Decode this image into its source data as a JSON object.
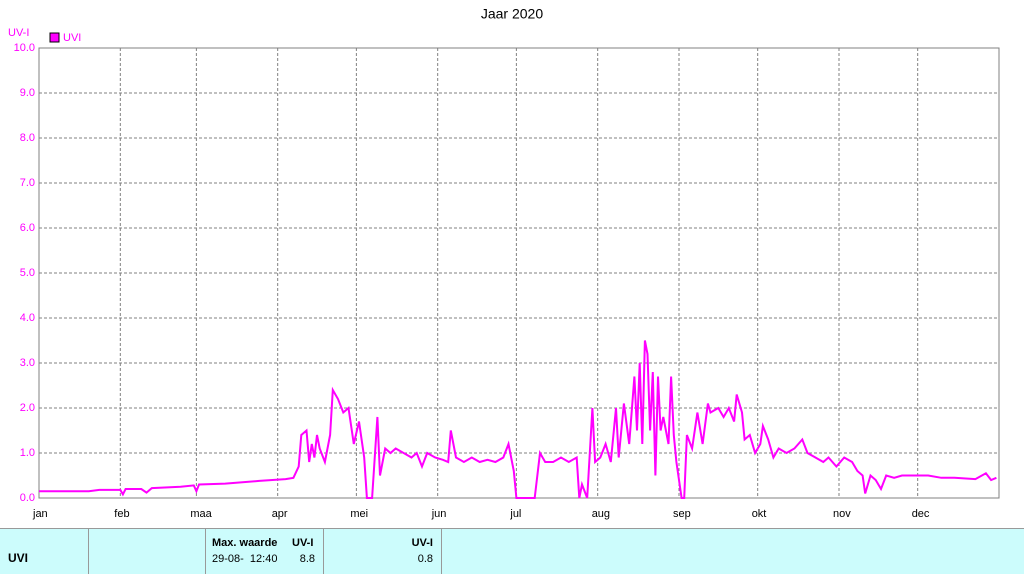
{
  "chart_data": {
    "type": "line",
    "title": "Jaar 2020",
    "y_label": "UV-I",
    "x": [
      1,
      20,
      24,
      32,
      33,
      34,
      40,
      42,
      44,
      55,
      60,
      61,
      62,
      72,
      85,
      95,
      98,
      100,
      101,
      103,
      104,
      105,
      106,
      107,
      108,
      110,
      112,
      113,
      115,
      117,
      119,
      121,
      123,
      125,
      126,
      128,
      130,
      131,
      133,
      135,
      137,
      140,
      143,
      145,
      147,
      149,
      152,
      155,
      157,
      158,
      160,
      163,
      166,
      169,
      172,
      175,
      178,
      180,
      182,
      183,
      190,
      192,
      194,
      197,
      200,
      203,
      206,
      207,
      208,
      210,
      212,
      213,
      215,
      217,
      219,
      221,
      222,
      224,
      226,
      228,
      229,
      230,
      231,
      232,
      233,
      234,
      235,
      236,
      237,
      238,
      239,
      241,
      242,
      243,
      244,
      246,
      247,
      248,
      250,
      252,
      254,
      256,
      257,
      260,
      262,
      264,
      266,
      267,
      269,
      270,
      272,
      274,
      276,
      277,
      279,
      281,
      283,
      286,
      289,
      292,
      294,
      297,
      300,
      302,
      305,
      308,
      311,
      313,
      315,
      316,
      318,
      320,
      322,
      324,
      327,
      330,
      335,
      340,
      345,
      350,
      358,
      362,
      364,
      366
    ],
    "series": [
      {
        "name": "UVI",
        "color": "#ff00ff",
        "values": [
          0.15,
          0.15,
          0.18,
          0.18,
          0.08,
          0.2,
          0.2,
          0.12,
          0.22,
          0.25,
          0.28,
          0.15,
          0.3,
          0.32,
          0.38,
          0.42,
          0.45,
          0.7,
          1.4,
          1.5,
          0.8,
          1.2,
          0.9,
          1.4,
          1.1,
          0.8,
          1.4,
          2.4,
          2.2,
          1.9,
          2.0,
          1.2,
          1.7,
          0.9,
          0,
          0,
          1.8,
          0.5,
          1.1,
          1.0,
          1.1,
          1.0,
          0.9,
          1.0,
          0.7,
          1.0,
          0.9,
          0.85,
          0.8,
          1.5,
          0.9,
          0.8,
          0.9,
          0.8,
          0.85,
          0.8,
          0.9,
          1.2,
          0.6,
          0,
          0,
          1.0,
          0.8,
          0.8,
          0.9,
          0.8,
          0.9,
          0,
          0.3,
          0,
          2.0,
          0.8,
          0.9,
          1.2,
          0.8,
          2.0,
          0.9,
          2.1,
          1.2,
          2.7,
          1.5,
          3.0,
          1.2,
          3.5,
          3.2,
          1.5,
          2.8,
          0.5,
          2.7,
          1.5,
          1.8,
          1.2,
          2.7,
          1.4,
          0.8,
          0,
          0,
          1.4,
          1.1,
          1.9,
          1.2,
          2.1,
          1.9,
          2.0,
          1.8,
          2.0,
          1.7,
          2.3,
          1.9,
          1.3,
          1.4,
          1.0,
          1.2,
          1.6,
          1.3,
          0.9,
          1.1,
          1.0,
          1.1,
          1.3,
          1.0,
          0.9,
          0.8,
          0.9,
          0.7,
          0.9,
          0.8,
          0.6,
          0.5,
          0.1,
          0.5,
          0.4,
          0.2,
          0.5,
          0.45,
          0.5,
          0.5,
          0.5,
          0.45,
          0.45,
          0.42,
          0.55,
          0.4,
          0.45
        ]
      }
    ],
    "xlim": [
      1,
      367
    ],
    "xticks": [
      {
        "value": 1,
        "label": "jan"
      },
      {
        "value": 32,
        "label": "feb"
      },
      {
        "value": 61,
        "label": "maa"
      },
      {
        "value": 92,
        "label": "apr"
      },
      {
        "value": 122,
        "label": "mei"
      },
      {
        "value": 153,
        "label": "jun"
      },
      {
        "value": 183,
        "label": "jul"
      },
      {
        "value": 214,
        "label": "aug"
      },
      {
        "value": 245,
        "label": "sep"
      },
      {
        "value": 275,
        "label": "okt"
      },
      {
        "value": 306,
        "label": "nov"
      },
      {
        "value": 336,
        "label": "dec"
      }
    ],
    "ylim": [
      0,
      10
    ],
    "yticks": [
      {
        "value": 0,
        "label": "0.0"
      },
      {
        "value": 1,
        "label": "1.0"
      },
      {
        "value": 2,
        "label": "2.0"
      },
      {
        "value": 3,
        "label": "3.0"
      },
      {
        "value": 4,
        "label": "4.0"
      },
      {
        "value": 5,
        "label": "5.0"
      },
      {
        "value": 6,
        "label": "6.0"
      },
      {
        "value": 7,
        "label": "7.0"
      },
      {
        "value": 8,
        "label": "8.0"
      },
      {
        "value": 9,
        "label": "9.0"
      },
      {
        "value": 10,
        "label": "10.0"
      }
    ],
    "grid": true
  },
  "table": {
    "label": "UVI",
    "max_header": "Max. waarde",
    "max_unit": "UV-I",
    "max_time": "29-08-  12:40",
    "max_value": "8.8",
    "avg_unit": "UV-I",
    "avg_value": "0.8"
  }
}
